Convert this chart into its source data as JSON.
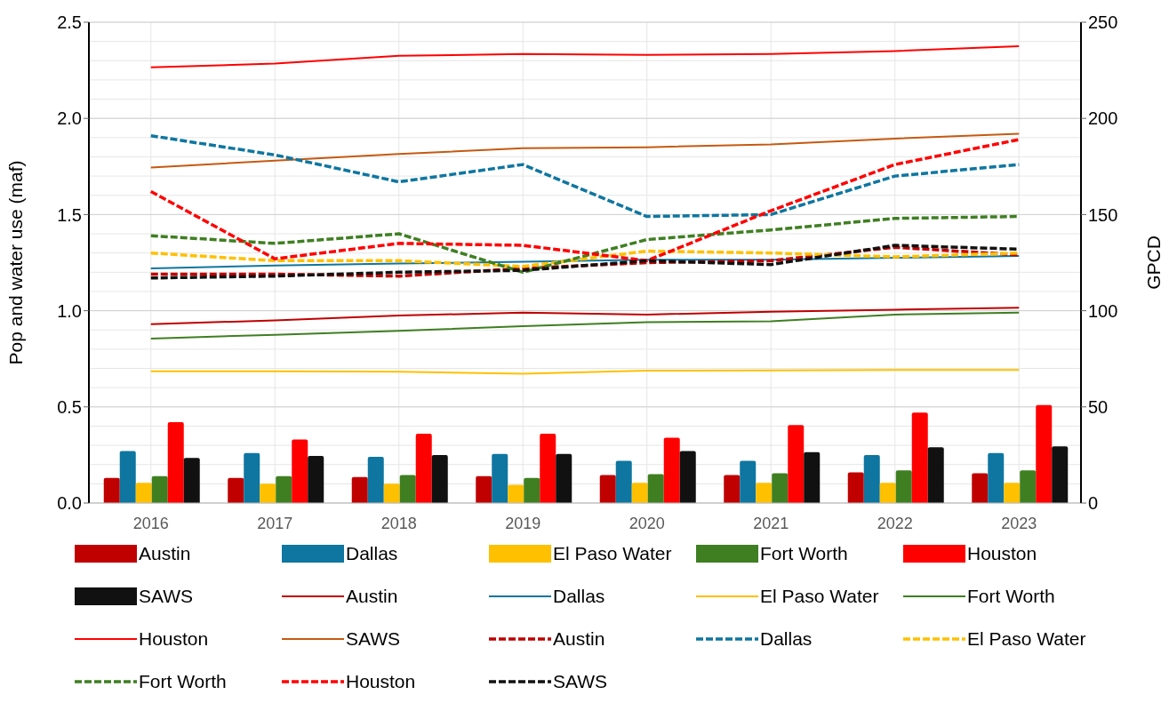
{
  "chart_data": {
    "type": "bar",
    "ylabel": "Pop and water use (maf)",
    "y2label": "GPCD",
    "categories": [
      "2016",
      "2017",
      "2018",
      "2019",
      "2020",
      "2021",
      "2022",
      "2023"
    ],
    "ylim": [
      0,
      2.5
    ],
    "yticks": [
      {
        "value": 0,
        "label": "0.0"
      },
      {
        "value": 0.5,
        "label": "0.5"
      },
      {
        "value": 1,
        "label": "1.0"
      },
      {
        "value": 1.5,
        "label": "1.5"
      },
      {
        "value": 2,
        "label": "2.0"
      },
      {
        "value": 2.5,
        "label": "2.5"
      }
    ],
    "y2lim": [
      0,
      250
    ],
    "y2ticks": [
      0,
      50,
      100,
      150,
      200,
      250
    ],
    "grid": true,
    "legend": "bottom",
    "series": [
      {
        "name": "Austin",
        "color": "#c00000",
        "values": [
          0.13,
          0.13,
          0.135,
          0.14,
          0.145,
          0.145,
          0.16,
          0.155
        ]
      },
      {
        "name": "Dallas",
        "color": "#0e76a0",
        "values": [
          0.27,
          0.26,
          0.24,
          0.255,
          0.22,
          0.22,
          0.25,
          0.26
        ]
      },
      {
        "name": "El Paso Water",
        "color": "#ffc000",
        "values": [
          0.105,
          0.1,
          0.1,
          0.095,
          0.105,
          0.105,
          0.105,
          0.105
        ]
      },
      {
        "name": "Fort Worth",
        "color": "#3f7f22",
        "values": [
          0.14,
          0.14,
          0.145,
          0.13,
          0.15,
          0.155,
          0.17,
          0.17
        ]
      },
      {
        "name": "Houston",
        "color": "#ff0000",
        "values": [
          0.42,
          0.33,
          0.36,
          0.36,
          0.34,
          0.405,
          0.47,
          0.51
        ]
      },
      {
        "name": "SAWS",
        "color": "#111111",
        "values": [
          0.235,
          0.245,
          0.25,
          0.255,
          0.27,
          0.265,
          0.29,
          0.295
        ]
      },
      {
        "name": "Austin",
        "type": "line",
        "line_style": "solid",
        "color": "#c00000",
        "values": [
          0.93,
          0.95,
          0.975,
          0.99,
          0.98,
          0.995,
          1.005,
          1.015
        ]
      },
      {
        "name": "Dallas",
        "type": "line",
        "line_style": "solid",
        "color": "#0e76a0",
        "values": [
          1.22,
          1.235,
          1.245,
          1.255,
          1.265,
          1.265,
          1.275,
          1.285
        ]
      },
      {
        "name": "El Paso Water",
        "type": "line",
        "line_style": "solid",
        "color": "#ffc000",
        "values": [
          0.685,
          0.685,
          0.683,
          0.672,
          0.688,
          0.69,
          0.692,
          0.692
        ]
      },
      {
        "name": "Fort Worth",
        "type": "line",
        "line_style": "solid",
        "color": "#3f7f22",
        "values": [
          0.855,
          0.875,
          0.895,
          0.92,
          0.94,
          0.945,
          0.98,
          0.99
        ]
      },
      {
        "name": "Houston",
        "type": "line",
        "line_style": "solid",
        "color": "#ff0000",
        "values": [
          2.265,
          2.285,
          2.325,
          2.335,
          2.33,
          2.335,
          2.35,
          2.375
        ]
      },
      {
        "name": "SAWS",
        "type": "line",
        "line_style": "solid",
        "color": "#c55a11",
        "values": [
          1.745,
          1.78,
          1.815,
          1.845,
          1.85,
          1.865,
          1.895,
          1.92
        ]
      },
      {
        "name": "Austin",
        "type": "line",
        "line_style": "dashed",
        "axis": "y2",
        "color": "#c00000",
        "values": [
          119,
          119,
          118,
          122,
          125,
          126,
          133,
          129
        ]
      },
      {
        "name": "Dallas",
        "type": "line",
        "line_style": "dashed",
        "axis": "y2",
        "color": "#0e76a0",
        "values": [
          191,
          181,
          167,
          176,
          149,
          150,
          170,
          176
        ]
      },
      {
        "name": "El Paso Water",
        "type": "line",
        "line_style": "dashed",
        "axis": "y2",
        "color": "#ffc000",
        "values": [
          130,
          126,
          126,
          123,
          131,
          130,
          128,
          130
        ]
      },
      {
        "name": "Fort Worth",
        "type": "line",
        "line_style": "dashed",
        "axis": "y2",
        "color": "#3f7f22",
        "values": [
          139,
          135,
          140,
          120,
          137,
          142,
          148,
          149
        ]
      },
      {
        "name": "Houston",
        "type": "line",
        "line_style": "dashed",
        "axis": "y2",
        "color": "#ff0000",
        "values": [
          162,
          127,
          135,
          134,
          126,
          152,
          176,
          189
        ]
      },
      {
        "name": "SAWS",
        "type": "line",
        "line_style": "dashed",
        "axis": "y2",
        "color": "#111111",
        "values": [
          117,
          118,
          120,
          121,
          126,
          124,
          134,
          132
        ]
      }
    ]
  }
}
